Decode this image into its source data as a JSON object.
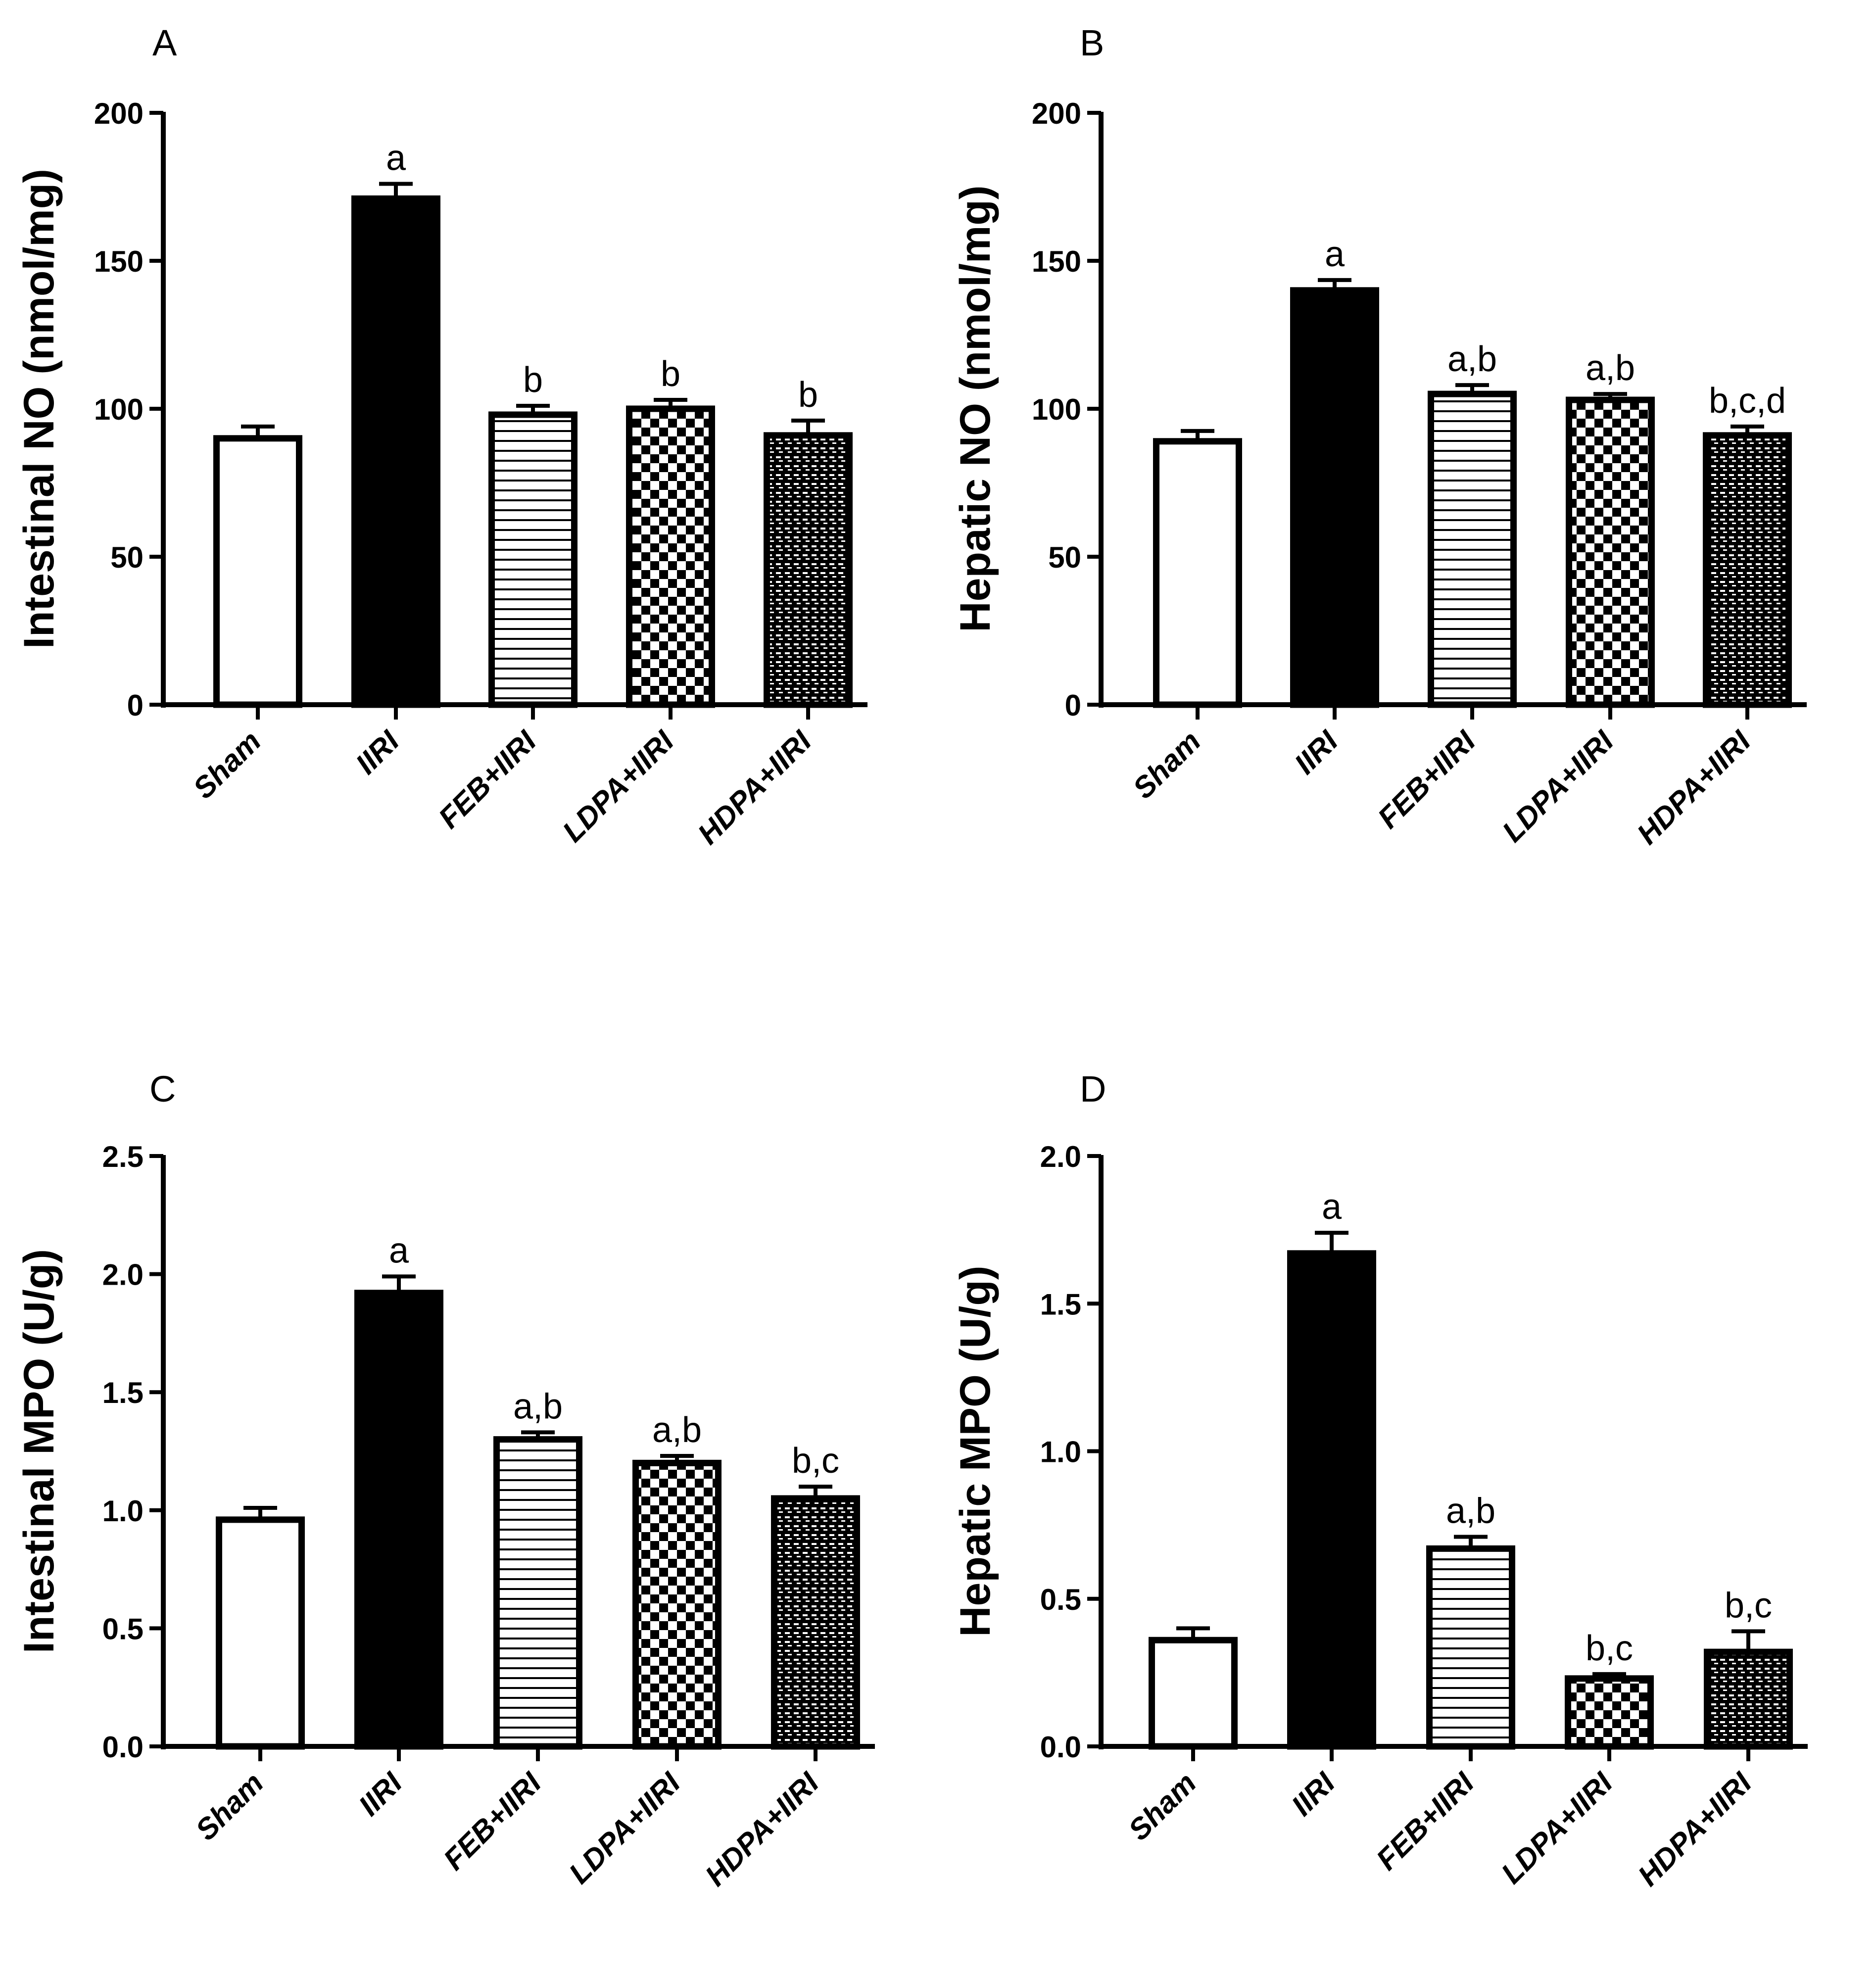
{
  "chart_data": [
    {
      "panel": "A",
      "type": "bar",
      "ylabel": "Intestinal NO (nmol/mg)",
      "categories": [
        "Sham",
        "IIRI",
        "FEB+IIRI",
        "LDPA+IIRI",
        "HDPA+IIRI"
      ],
      "values": [
        90,
        171,
        98,
        100,
        91
      ],
      "errors": [
        4,
        5,
        3,
        3,
        5
      ],
      "significance": [
        "",
        "a",
        "b",
        "b",
        "b"
      ],
      "ylim": [
        0,
        200
      ],
      "yticks": [
        0,
        50,
        100,
        150,
        200
      ],
      "ytick_labels": [
        "0",
        "50",
        "100",
        "150",
        "200"
      ],
      "patterns": [
        "white",
        "black",
        "hlines",
        "checker",
        "fine-grid"
      ]
    },
    {
      "panel": "B",
      "type": "bar",
      "ylabel": "Hepatic NO (nmol/mg)",
      "categories": [
        "Sham",
        "IIRI",
        "FEB+IIRI",
        "LDPA+IIRI",
        "HDPA+IIRI"
      ],
      "values": [
        89,
        140,
        105,
        103,
        91
      ],
      "errors": [
        3.5,
        3.5,
        3,
        2,
        3
      ],
      "significance": [
        "",
        "a",
        "a,b",
        "a,b",
        "b,c,d"
      ],
      "ylim": [
        0,
        200
      ],
      "yticks": [
        0,
        50,
        100,
        150,
        200
      ],
      "ytick_labels": [
        "0",
        "50",
        "100",
        "150",
        "200"
      ],
      "patterns": [
        "white",
        "black",
        "hlines",
        "checker",
        "fine-grid"
      ]
    },
    {
      "panel": "C",
      "type": "bar",
      "ylabel": "Intestinal MPO (U/g)",
      "categories": [
        "Sham",
        "IIRI",
        "FEB+IIRI",
        "LDPA+IIRI",
        "HDPA+IIRI"
      ],
      "values": [
        0.96,
        1.92,
        1.3,
        1.2,
        1.05
      ],
      "errors": [
        0.05,
        0.07,
        0.03,
        0.03,
        0.05
      ],
      "significance": [
        "",
        "a",
        "a,b",
        "a,b",
        "b,c"
      ],
      "ylim": [
        0,
        2.5
      ],
      "yticks": [
        0,
        0.5,
        1.0,
        1.5,
        2.0,
        2.5
      ],
      "ytick_labels": [
        "0.0",
        "0.5",
        "1.0",
        "1.5",
        "2.0",
        "2.5"
      ],
      "patterns": [
        "white",
        "black",
        "hlines",
        "checker",
        "fine-grid"
      ]
    },
    {
      "panel": "D",
      "type": "bar",
      "ylabel": "Hepatic MPO (U/g)",
      "categories": [
        "Sham",
        "IIRI",
        "FEB+IIRI",
        "LDPA+IIRI",
        "HDPA+IIRI"
      ],
      "values": [
        0.36,
        1.67,
        0.67,
        0.23,
        0.32
      ],
      "errors": [
        0.04,
        0.07,
        0.04,
        0.015,
        0.07
      ],
      "significance": [
        "",
        "a",
        "a,b",
        "b,c",
        "b,c"
      ],
      "ylim": [
        0,
        2.0
      ],
      "yticks": [
        0,
        0.5,
        1.0,
        1.5,
        2.0
      ],
      "ytick_labels": [
        "0.0",
        "0.5",
        "1.0",
        "1.5",
        "2.0"
      ],
      "patterns": [
        "white",
        "black",
        "hlines",
        "checker",
        "fine-grid"
      ]
    }
  ]
}
